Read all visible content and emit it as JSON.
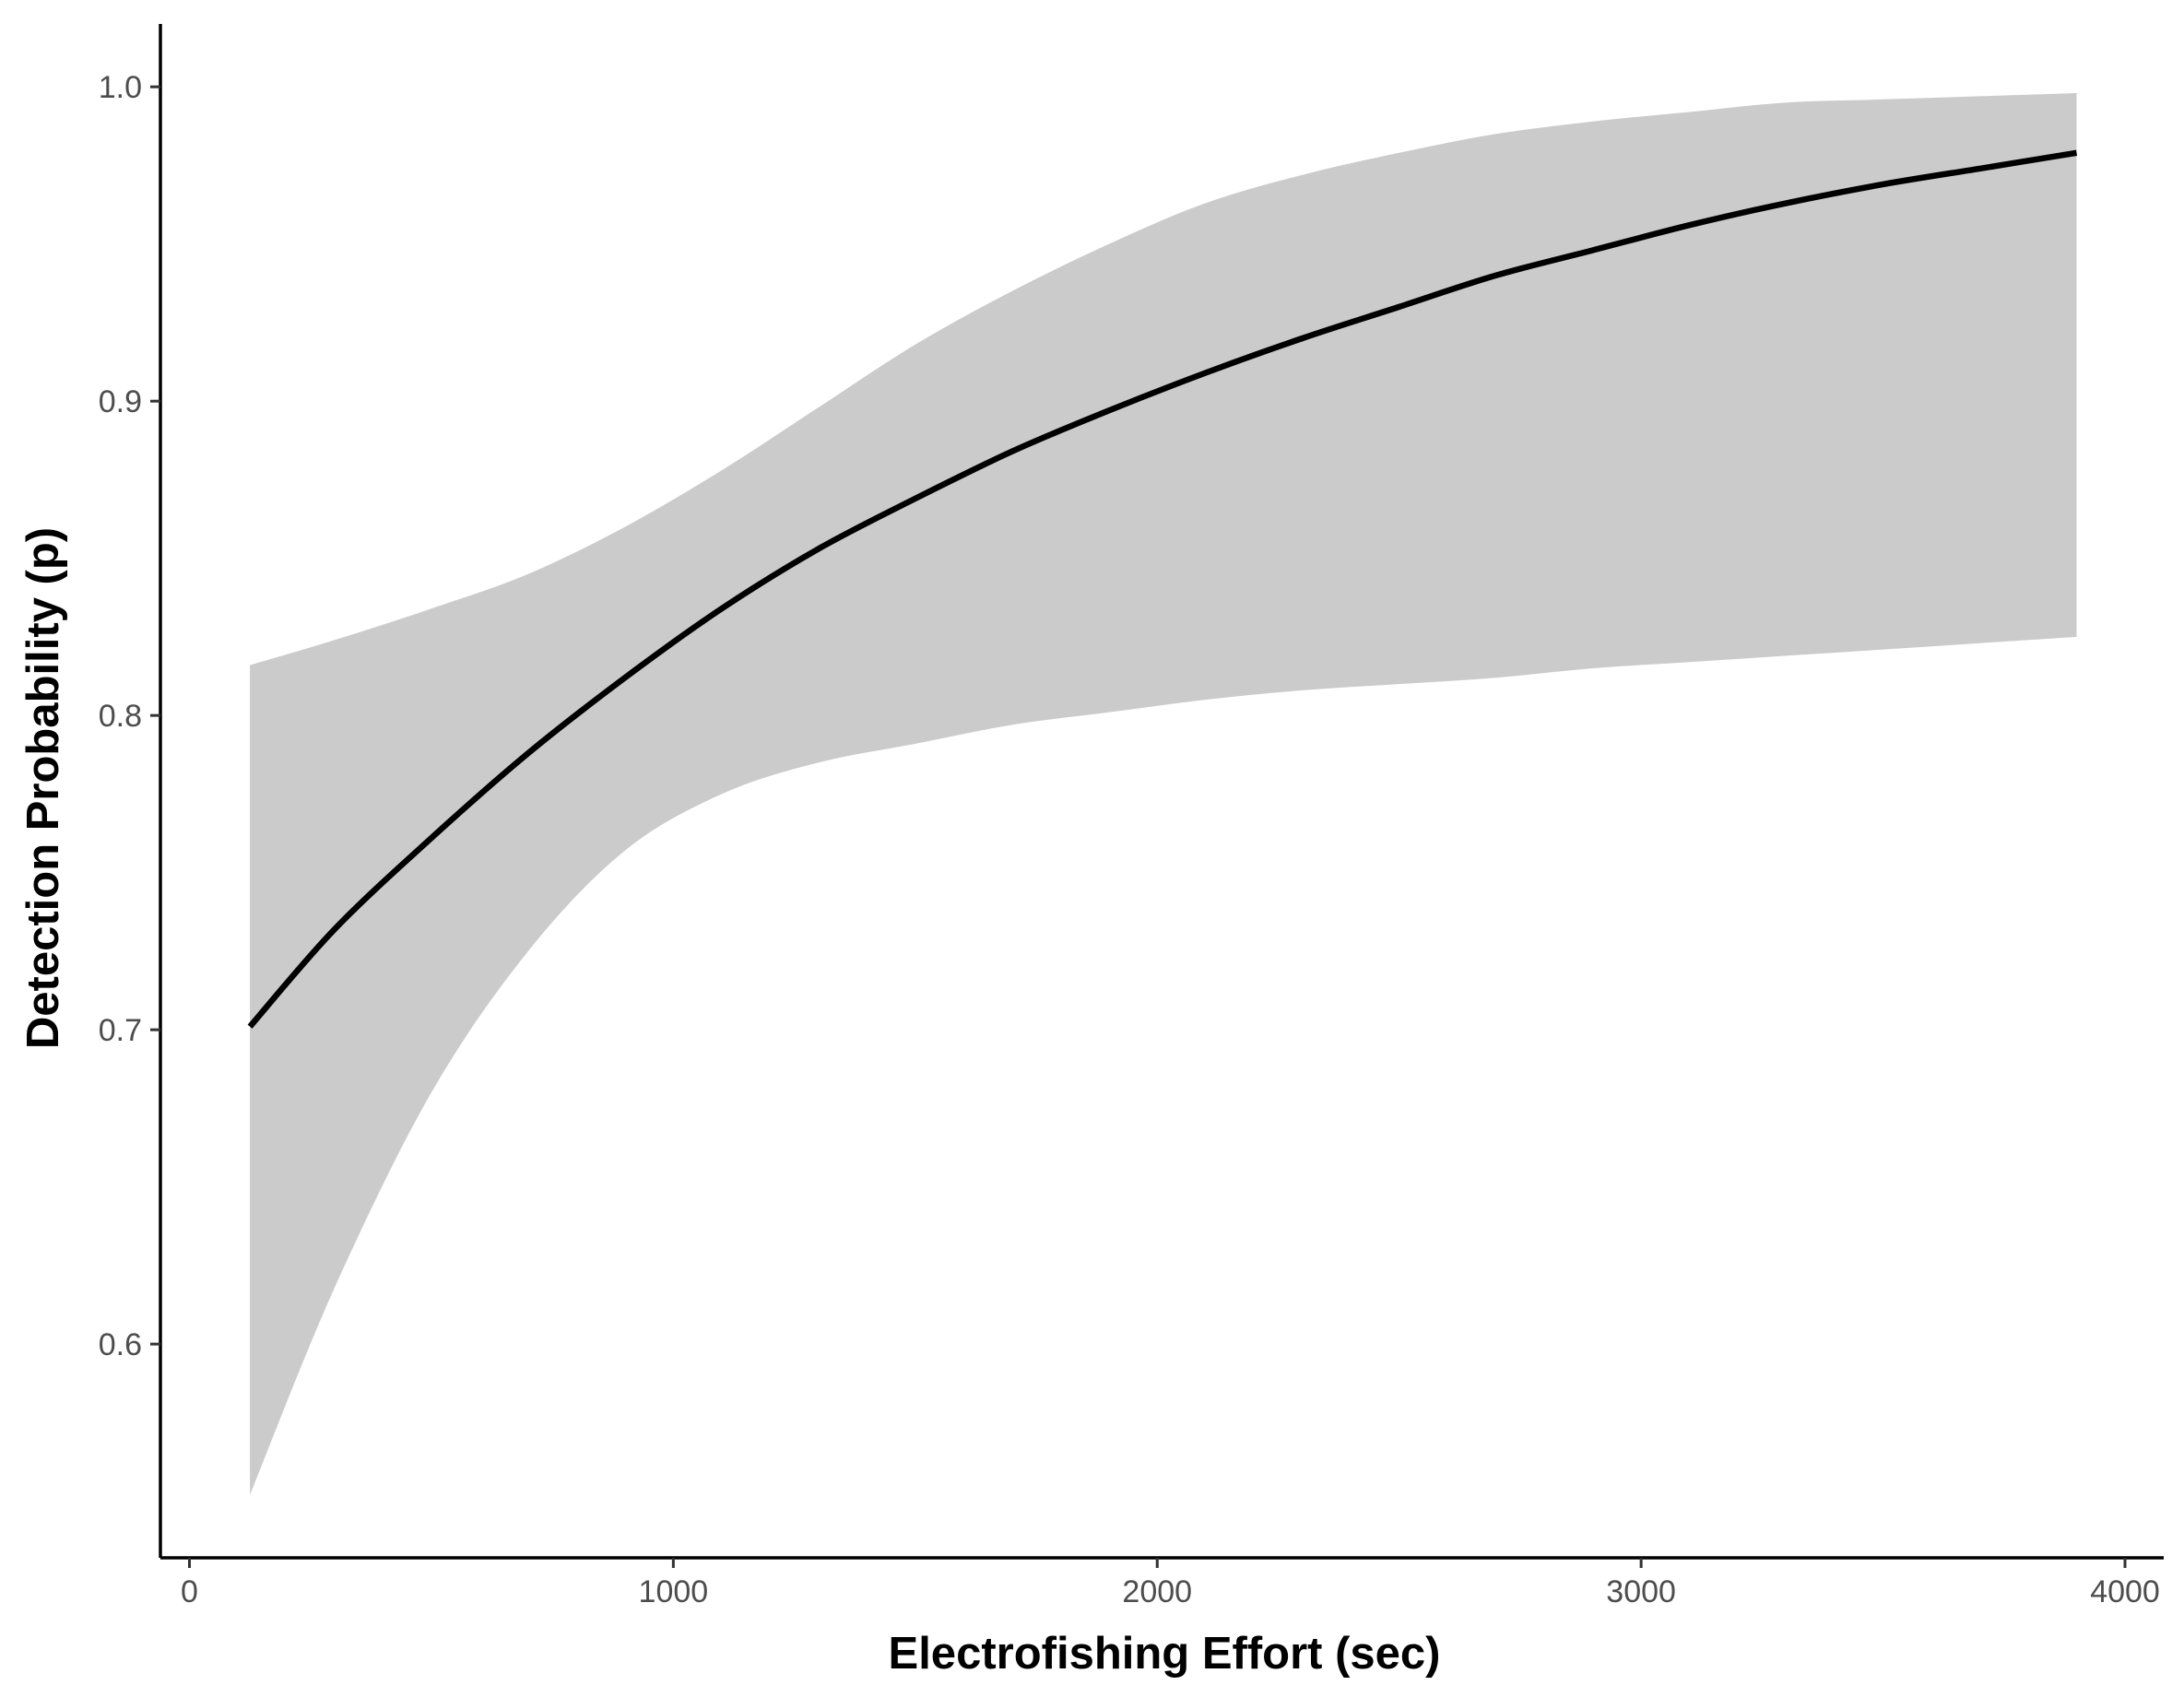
{
  "chart_data": {
    "type": "line",
    "title": "",
    "xlabel": "Electrofishing Effort (sec)",
    "ylabel": "Detection Probability (p)",
    "xlim": [
      -60,
      4080
    ],
    "ylim": [
      0.532,
      1.02
    ],
    "x_ticks": [
      {
        "value": 0,
        "label": "0"
      },
      {
        "value": 1000,
        "label": "1000"
      },
      {
        "value": 2000,
        "label": "2000"
      },
      {
        "value": 3000,
        "label": "3000"
      },
      {
        "value": 4000,
        "label": "4000"
      }
    ],
    "y_ticks": [
      {
        "value": 0.6,
        "label": "0.6"
      },
      {
        "value": 0.7,
        "label": "0.7"
      },
      {
        "value": 0.8,
        "label": "0.8"
      },
      {
        "value": 0.9,
        "label": "0.9"
      },
      {
        "value": 1.0,
        "label": "1.0"
      }
    ],
    "grid": false,
    "legend": "none",
    "series": [
      {
        "x": [
          125,
          300,
          500,
          700,
          900,
          1100,
          1300,
          1500,
          1700,
          1900,
          2100,
          2300,
          2500,
          2700,
          2900,
          3100,
          3300,
          3500,
          3700,
          3900
        ],
        "y": [
          0.701,
          0.732,
          0.761,
          0.788,
          0.812,
          0.834,
          0.853,
          0.869,
          0.884,
          0.897,
          0.909,
          0.92,
          0.93,
          0.94,
          0.948,
          0.956,
          0.963,
          0.969,
          0.974,
          0.979
        ],
        "lower": [
          0.552,
          0.618,
          0.68,
          0.725,
          0.757,
          0.775,
          0.785,
          0.791,
          0.797,
          0.801,
          0.805,
          0.808,
          0.81,
          0.812,
          0.815,
          0.817,
          0.819,
          0.821,
          0.823,
          0.825
        ],
        "upper": [
          0.816,
          0.824,
          0.834,
          0.845,
          0.86,
          0.878,
          0.898,
          0.918,
          0.935,
          0.95,
          0.963,
          0.972,
          0.979,
          0.985,
          0.989,
          0.992,
          0.995,
          0.996,
          0.997,
          0.998
        ]
      }
    ],
    "colors": {
      "line": "#000000",
      "ribbon": "#cbcbcb",
      "axis": "#000000",
      "tick_label": "#4d4d4d"
    }
  }
}
